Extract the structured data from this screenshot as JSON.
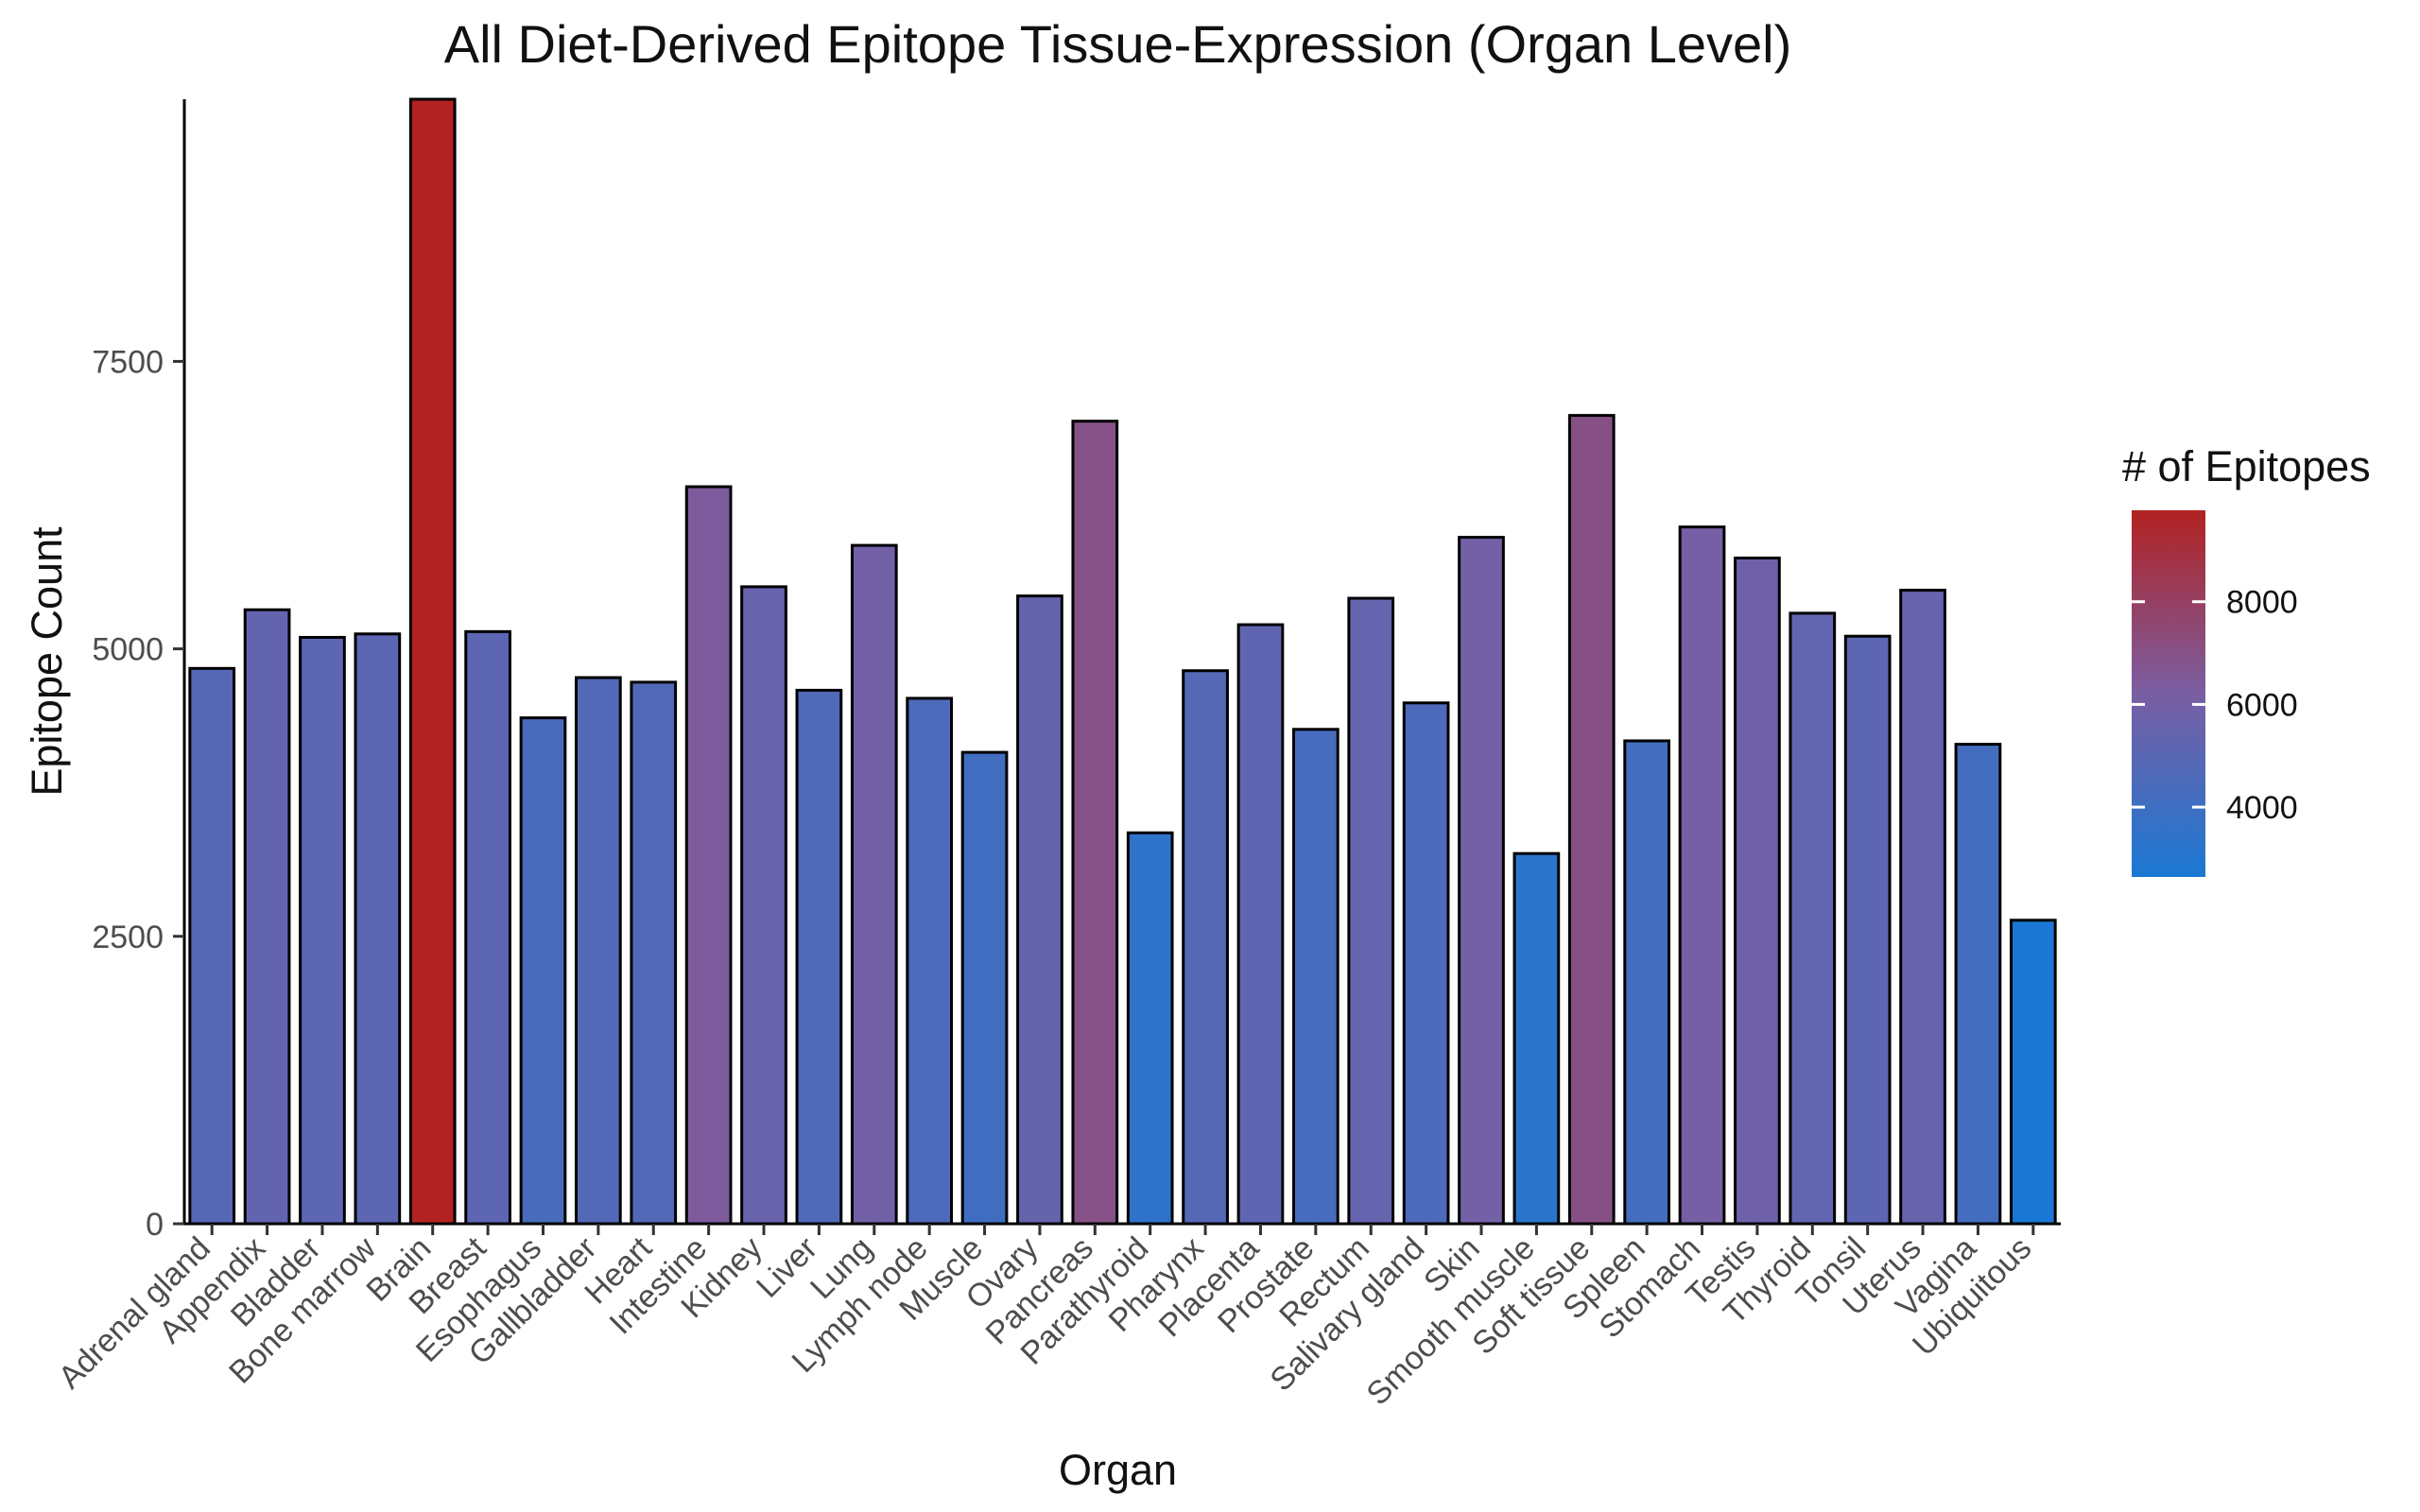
{
  "chart_data": {
    "type": "bar",
    "title": "All Diet-Derived Epitope Tissue-Expression (Organ Level)",
    "xlabel": "Organ",
    "ylabel": "Epitope Count",
    "categories": [
      "Adrenal gland",
      "Appendix",
      "Bladder",
      "Bone marrow",
      "Brain",
      "Breast",
      "Esophagus",
      "Gallbladder",
      "Heart",
      "Intestine",
      "Kidney",
      "Liver",
      "Lung",
      "Lymph node",
      "Muscle",
      "Ovary",
      "Pancreas",
      "Parathyroid",
      "Pharynx",
      "Placenta",
      "Prostate",
      "Rectum",
      "Salivary gland",
      "Skin",
      "Smooth muscle",
      "Soft tissue",
      "Spleen",
      "Stomach",
      "Testis",
      "Thyroid",
      "Tonsil",
      "Uterus",
      "Vagina",
      "Ubiquitous"
    ],
    "values": [
      4830,
      5340,
      5100,
      5130,
      9780,
      5150,
      4400,
      4750,
      4710,
      6410,
      5540,
      4640,
      5900,
      4570,
      4100,
      5460,
      6980,
      3400,
      4810,
      5210,
      4300,
      5440,
      4530,
      5970,
      3220,
      7030,
      4200,
      6060,
      5790,
      5310,
      5110,
      5510,
      4170,
      2640
    ],
    "ylim": [
      0,
      9780
    ],
    "yticks": [
      0,
      2500,
      5000,
      7500
    ],
    "legend": {
      "title": "# of Epitopes",
      "position": "right",
      "ticks": [
        4000,
        6000,
        8000
      ],
      "range": [
        2640,
        9780
      ],
      "low_color": "#1a78d4",
      "mid_color": "#7a5ea3",
      "high_color": "#b22222"
    },
    "grid": false
  }
}
